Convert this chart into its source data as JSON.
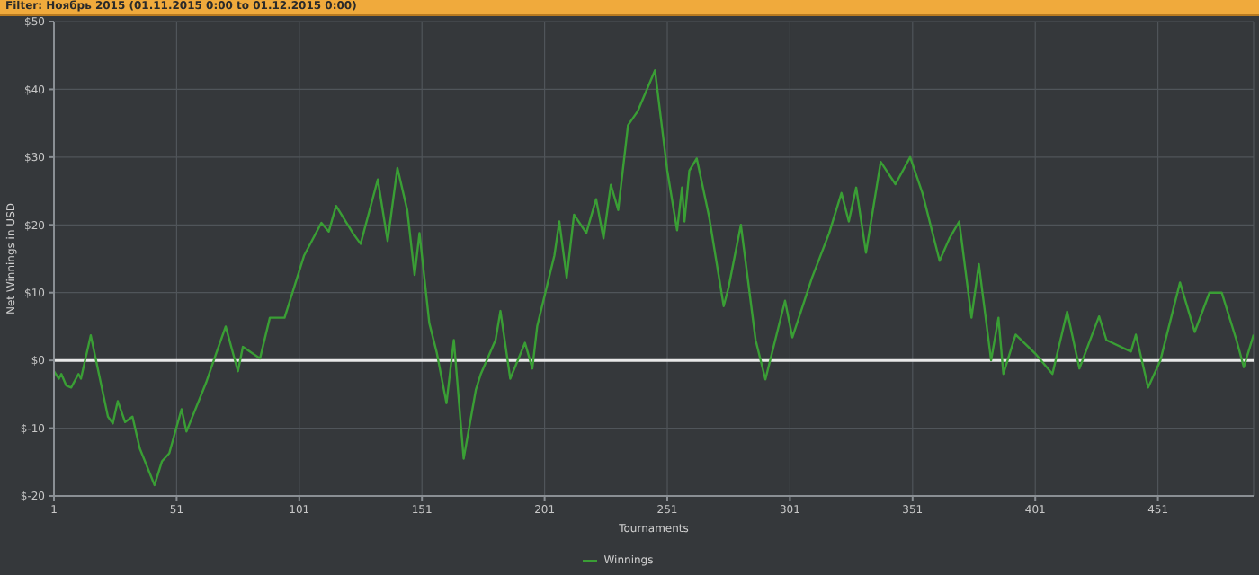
{
  "chart_data": {
    "type": "line",
    "title": "Filter: Ноябрь 2015 (01.11.2015 0:00 to 01.12.2015 0:00)",
    "xlabel": "Tournaments",
    "ylabel": "Net Winnings in USD",
    "series": [
      {
        "name": "Winnings",
        "color": "#3a9e35",
        "x": [
          1,
          3,
          4,
          6,
          8,
          11,
          12,
          16,
          23,
          25,
          27,
          30,
          33,
          36,
          42,
          45,
          48,
          53,
          55,
          63,
          67,
          71,
          76,
          78,
          85,
          89,
          95,
          103,
          110,
          113,
          116,
          123,
          126,
          133,
          137,
          141,
          145,
          148,
          150,
          154,
          157,
          161,
          164,
          168,
          173,
          175,
          181,
          183,
          187,
          193,
          196,
          198,
          205,
          207,
          210,
          213,
          218,
          222,
          225,
          228,
          231,
          235,
          239,
          246,
          251,
          255,
          257,
          258,
          260,
          263,
          268,
          274,
          276,
          281,
          287,
          291,
          295,
          299,
          302,
          310,
          317,
          322,
          325,
          328,
          332,
          338,
          344,
          350,
          355,
          362,
          366,
          370,
          375,
          378,
          383,
          386,
          388,
          393,
          401,
          408,
          414,
          419,
          427,
          430,
          440,
          442,
          447,
          452,
          460,
          466,
          472,
          477,
          483,
          486,
          490
        ],
        "values": [
          -1.6,
          -2.7,
          -2,
          -3.7,
          -4,
          -2,
          -2.7,
          3.7,
          -8.3,
          -9.3,
          -6,
          -9.1,
          -8.3,
          -13,
          -18.4,
          -14.9,
          -13.7,
          -7.2,
          -10.5,
          -3.3,
          0.9,
          5,
          -1.6,
          2,
          0.3,
          6.3,
          6.3,
          15.5,
          20.3,
          19,
          22.8,
          18.7,
          17.2,
          26.7,
          17.6,
          28.4,
          22.2,
          12.6,
          18.8,
          5.5,
          1.2,
          -6.3,
          3,
          -14.5,
          -4.3,
          -2,
          3,
          7.3,
          -2.7,
          2.6,
          -1.2,
          5.1,
          15.5,
          20.5,
          12.2,
          21.5,
          18.8,
          23.8,
          18,
          25.9,
          22.2,
          34.7,
          36.8,
          42.8,
          28,
          19.2,
          25.5,
          20.5,
          28,
          29.8,
          21.3,
          8,
          10.8,
          20,
          3,
          -2.8,
          3,
          8.8,
          3.4,
          12.2,
          18.8,
          24.7,
          20.5,
          25.5,
          15.9,
          29.3,
          26,
          30,
          24.7,
          14.7,
          18,
          20.5,
          6.3,
          14.2,
          0,
          6.3,
          -2,
          3.8,
          1,
          -2,
          7.2,
          -1.2,
          6.5,
          3,
          1.3,
          3.8,
          -4,
          0,
          11.5,
          4.2,
          10,
          10,
          3,
          -1,
          3.8
        ]
      }
    ],
    "xlim": [
      1,
      490
    ],
    "xticks": [
      1,
      51,
      101,
      151,
      201,
      251,
      301,
      351,
      401,
      451
    ],
    "ylim": [
      -20,
      50
    ],
    "yticks": [
      {
        "value": -20,
        "label": "$-20"
      },
      {
        "value": -10,
        "label": "$-10"
      },
      {
        "value": 0,
        "label": "$0"
      },
      {
        "value": 10,
        "label": "$10"
      },
      {
        "value": 20,
        "label": "$20"
      },
      {
        "value": 30,
        "label": "$30"
      },
      {
        "value": 40,
        "label": "$40"
      },
      {
        "value": 50,
        "label": "$50"
      }
    ],
    "ref_lines": [
      {
        "axis": "y",
        "value": 0,
        "color": "#e8e8e8"
      }
    ],
    "grid": true,
    "legend": "bottom",
    "marker": "none",
    "line_style": "solid"
  }
}
